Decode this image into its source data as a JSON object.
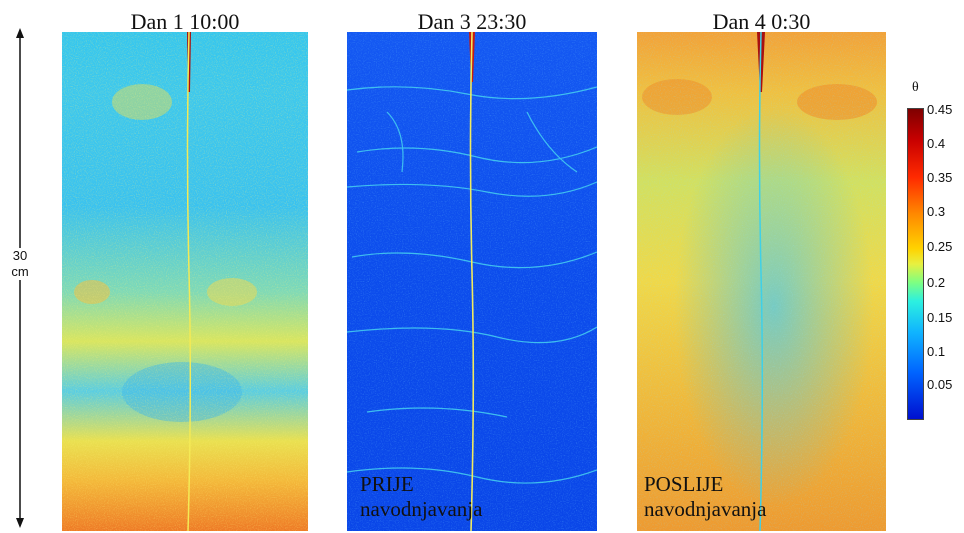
{
  "scale": {
    "value": "30",
    "unit": "cm"
  },
  "panels": [
    {
      "title": "Dan 1 10:00",
      "overlay_line1": "",
      "overlay_line2": ""
    },
    {
      "title": "Dan 3 23:30",
      "overlay_line1": "PRIJE",
      "overlay_line2": "navodnjavanja"
    },
    {
      "title": "Dan 4 0:30",
      "overlay_line1": "POSLIJE",
      "overlay_line2": "navodnjavanja"
    }
  ],
  "colorbar": {
    "symbol": "θ",
    "ticks": [
      "0.45",
      "0.4",
      "0.35",
      "0.3",
      "0.25",
      "0.2",
      "0.15",
      "0.1",
      "0.05"
    ]
  },
  "colors": {
    "deep_blue": "#0a3cf0",
    "cyan": "#2cc8f0",
    "yellow": "#f0e040",
    "orange": "#f08020",
    "dark_red": "#8b0000"
  }
}
